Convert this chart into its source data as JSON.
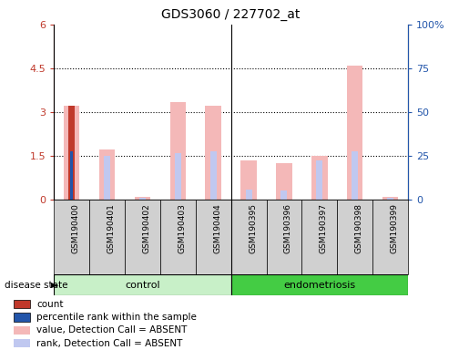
{
  "title": "GDS3060 / 227702_at",
  "samples": [
    "GSM190400",
    "GSM190401",
    "GSM190402",
    "GSM190403",
    "GSM190404",
    "GSM190395",
    "GSM190396",
    "GSM190397",
    "GSM190398",
    "GSM190399"
  ],
  "groups": [
    "control",
    "control",
    "control",
    "control",
    "control",
    "endometriosis",
    "endometriosis",
    "endometriosis",
    "endometriosis",
    "endometriosis"
  ],
  "value_absent": [
    3.2,
    1.7,
    0.08,
    3.35,
    3.2,
    1.35,
    1.25,
    1.5,
    4.6,
    0.08
  ],
  "rank_absent": [
    1.65,
    1.5,
    0.06,
    1.6,
    1.65,
    0.35,
    0.3,
    1.35,
    1.65,
    0.06
  ],
  "count_val": [
    3.2,
    0,
    0,
    0,
    0,
    0,
    0,
    0,
    0,
    0
  ],
  "percentile_val": [
    1.65,
    0,
    0,
    0,
    0,
    0,
    0,
    0,
    0,
    0
  ],
  "ylim_left": [
    0,
    6
  ],
  "ylim_right": [
    0,
    100
  ],
  "yticks_left": [
    0,
    1.5,
    3.0,
    4.5,
    6.0
  ],
  "ytick_labels_left": [
    "0",
    "1.5",
    "3",
    "4.5",
    "6"
  ],
  "yticks_right": [
    0,
    25,
    50,
    75,
    100
  ],
  "ytick_labels_right": [
    "0",
    "25",
    "50",
    "75",
    "100%"
  ],
  "color_count": "#c0392b",
  "color_percentile": "#2255aa",
  "color_value_absent": "#f4b8b8",
  "color_rank_absent": "#c0c8f0",
  "color_control_bg": "#c8f0c8",
  "color_endo_bg": "#44cc44",
  "color_xticklabel_bg": "#d0d0d0",
  "group_label": "disease state",
  "legend_items": [
    {
      "label": "count",
      "color": "#c0392b",
      "marker": "s"
    },
    {
      "label": "percentile rank within the sample",
      "color": "#2255aa",
      "marker": "s"
    },
    {
      "label": "value, Detection Call = ABSENT",
      "color": "#f4b8b8",
      "marker": "s"
    },
    {
      "label": "rank, Detection Call = ABSENT",
      "color": "#c0c8f0",
      "marker": "s"
    }
  ]
}
